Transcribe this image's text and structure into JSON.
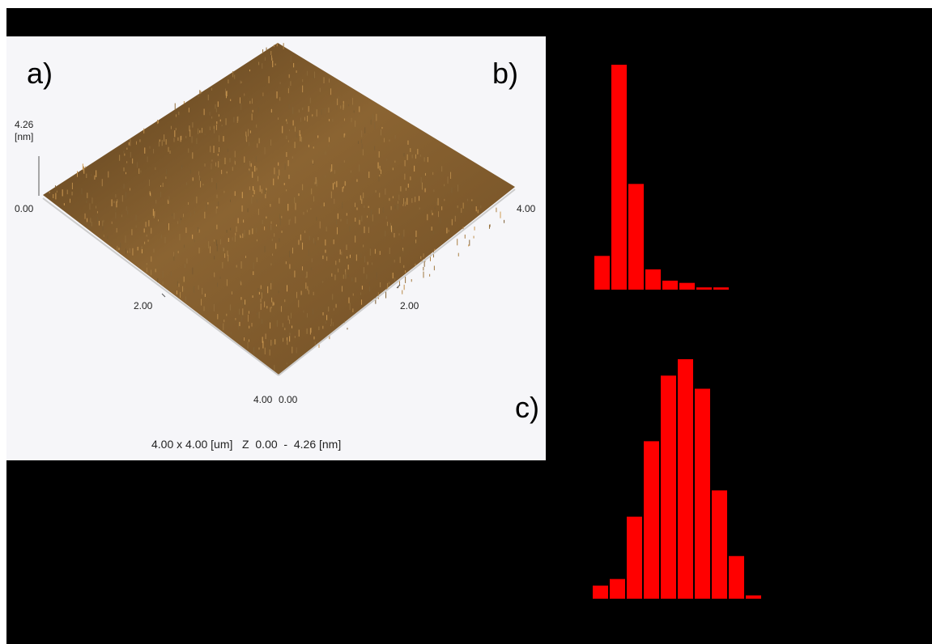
{
  "panels": {
    "a_label": "a)",
    "b_label": "b)",
    "c_label": "c)"
  },
  "afm": {
    "z_max_label": "4.26",
    "z_unit_label": "[nm]",
    "origin_label": "0.00",
    "right_end_label": "4.00",
    "left_mid_label": "2.00",
    "right_mid_label": "2.00",
    "front_left_label": "4.00",
    "front_right_label": "0.00",
    "caption": "4.00 x 4.00 [um]   Z  0.00  -  4.26 [nm]",
    "surface_color": "#8b6432"
  },
  "colors": {
    "bar": "#ff0000",
    "background": "#000000"
  },
  "chart_data": [
    {
      "type": "bar",
      "panel": "b",
      "values": [
        15,
        100,
        47,
        9,
        4,
        3,
        1,
        1
      ],
      "grid": false,
      "legend": "none"
    },
    {
      "type": "bar",
      "panel": "c",
      "values": [
        4,
        6,
        25,
        48,
        68,
        73,
        64,
        33,
        13,
        1
      ],
      "grid": false,
      "legend": "none"
    }
  ]
}
